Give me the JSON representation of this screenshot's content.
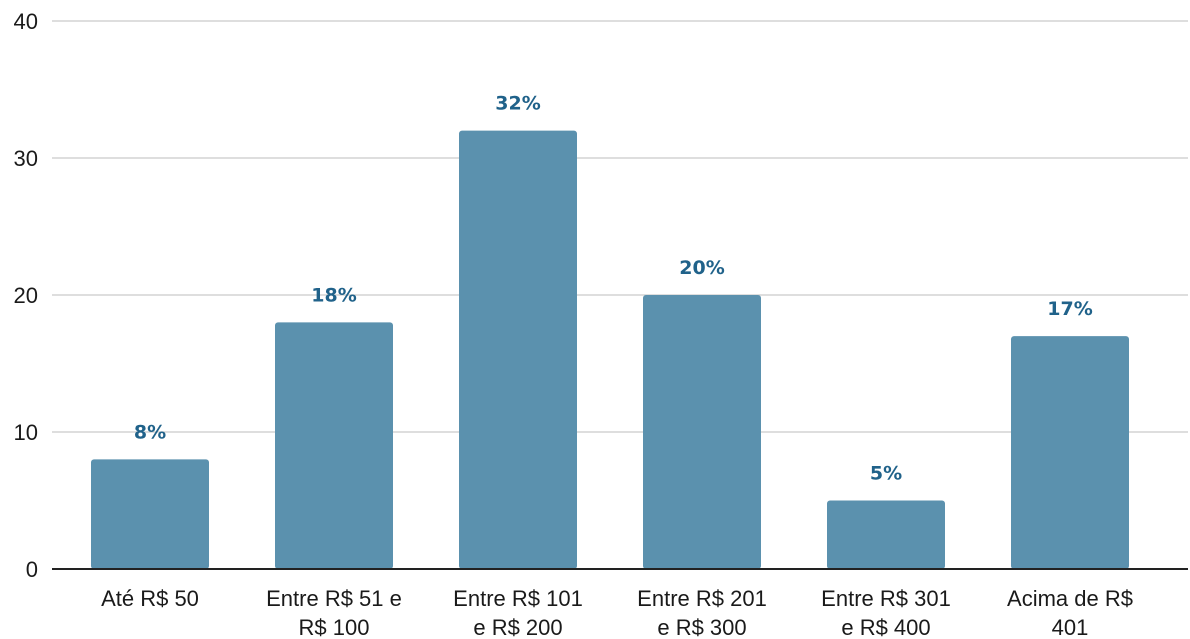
{
  "chart_data": {
    "type": "bar",
    "categories": [
      [
        "Até R$ 50"
      ],
      [
        "Entre R$ 51 e",
        "R$ 100"
      ],
      [
        "Entre R$ 101",
        "e R$ 200"
      ],
      [
        "Entre R$ 201",
        "e R$ 300"
      ],
      [
        "Entre R$ 301",
        "e R$ 400"
      ],
      [
        "Acima de R$",
        "401"
      ]
    ],
    "values": [
      8,
      18,
      32,
      20,
      5,
      17
    ],
    "data_labels": [
      "8%",
      "18%",
      "32%",
      "20%",
      "5%",
      "17%"
    ],
    "y_ticks": [
      "0",
      "10",
      "20",
      "30",
      "40"
    ],
    "ylim": [
      0,
      40
    ],
    "grid": true,
    "legend": "none",
    "colors": {
      "bar": "#5b91ae",
      "data_label": "#20628a",
      "grid": "#d4d4d4",
      "axis": "#222222"
    }
  }
}
